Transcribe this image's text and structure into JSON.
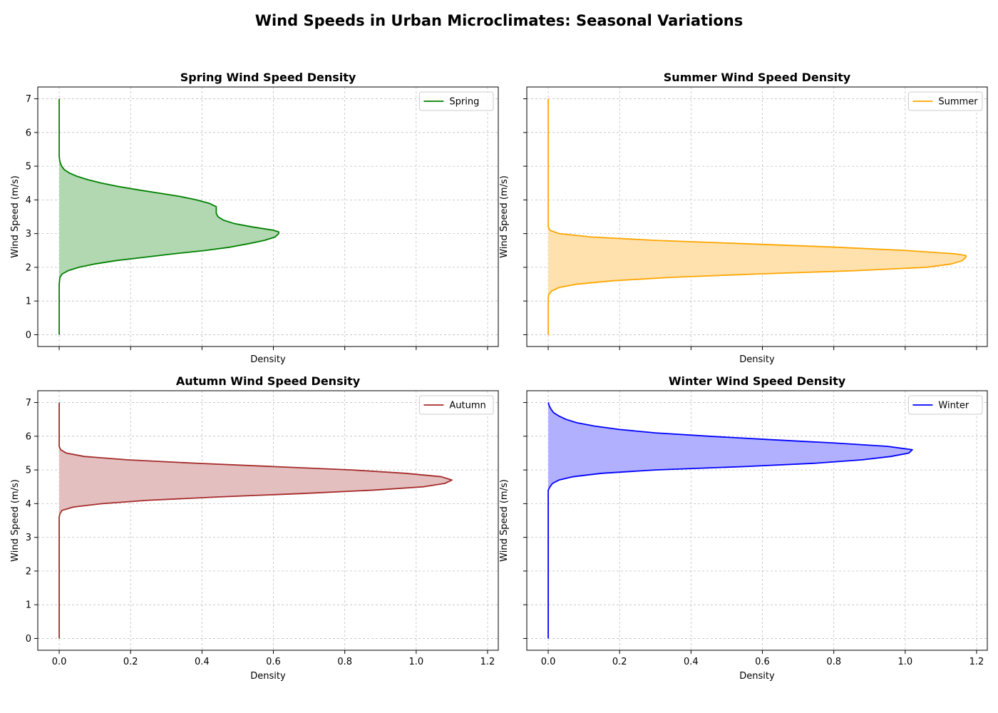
{
  "figure": {
    "suptitle": "Wind Speeds in Urban Microclimates: Seasonal Variations"
  },
  "chart_data": [
    {
      "type": "area",
      "title": "Spring Wind Speed Density",
      "xlabel": "Density",
      "ylabel": "Wind Speed (m/s)",
      "xlim": [
        -0.06,
        1.23
      ],
      "ylim": [
        -0.35,
        7.35
      ],
      "xticks": [
        "0.0",
        "0.2",
        "0.4",
        "0.6",
        "0.8",
        "1.0",
        "1.2"
      ],
      "yticks": [
        "0",
        "1",
        "2",
        "3",
        "4",
        "5",
        "6",
        "7"
      ],
      "show_xticklabels": false,
      "show_yticklabels": true,
      "grid": true,
      "legend": "upper-right",
      "series": [
        {
          "name": "Spring",
          "color": "#008000",
          "fill": "#b1d8b1",
          "y": [
            0,
            1.5,
            1.7,
            1.8,
            1.9,
            2.0,
            2.1,
            2.2,
            2.3,
            2.4,
            2.5,
            2.6,
            2.7,
            2.8,
            2.9,
            3.0,
            3.05,
            3.1,
            3.2,
            3.3,
            3.4,
            3.5,
            3.6,
            3.7,
            3.8,
            3.9,
            4.0,
            4.1,
            4.2,
            4.3,
            4.4,
            4.5,
            4.6,
            4.7,
            4.8,
            4.9,
            5.0,
            5.1,
            5.2,
            5.3,
            5.5,
            7.0
          ],
          "density": [
            0,
            0,
            0.002,
            0.008,
            0.025,
            0.055,
            0.1,
            0.16,
            0.24,
            0.32,
            0.41,
            0.48,
            0.53,
            0.575,
            0.605,
            0.615,
            0.615,
            0.6,
            0.54,
            0.49,
            0.46,
            0.445,
            0.44,
            0.44,
            0.44,
            0.42,
            0.385,
            0.34,
            0.28,
            0.22,
            0.165,
            0.118,
            0.08,
            0.05,
            0.028,
            0.014,
            0.007,
            0.003,
            0.001,
            0,
            0,
            0
          ]
        }
      ]
    },
    {
      "type": "area",
      "title": "Summer Wind Speed Density",
      "xlabel": "Density",
      "ylabel": "Wind Speed (m/s)",
      "xlim": [
        -0.06,
        1.23
      ],
      "ylim": [
        -0.35,
        7.35
      ],
      "xticks": [
        "0.0",
        "0.2",
        "0.4",
        "0.6",
        "0.8",
        "1.0",
        "1.2"
      ],
      "yticks": [
        "0",
        "1",
        "2",
        "3",
        "4",
        "5",
        "6",
        "7"
      ],
      "show_xticklabels": false,
      "show_yticklabels": false,
      "grid": true,
      "legend": "upper-right",
      "series": [
        {
          "name": "Summer",
          "color": "#ffa500",
          "fill": "#ffe1ad",
          "y": [
            0,
            1.1,
            1.2,
            1.3,
            1.4,
            1.5,
            1.6,
            1.7,
            1.8,
            1.9,
            2.0,
            2.1,
            2.2,
            2.3,
            2.35,
            2.4,
            2.5,
            2.6,
            2.7,
            2.8,
            2.9,
            3.0,
            3.1,
            3.2,
            7.0
          ],
          "density": [
            0,
            0,
            0.002,
            0.01,
            0.03,
            0.08,
            0.18,
            0.34,
            0.58,
            0.86,
            1.06,
            1.13,
            1.16,
            1.17,
            1.17,
            1.14,
            1.0,
            0.8,
            0.55,
            0.3,
            0.12,
            0.03,
            0.005,
            0,
            0
          ]
        }
      ]
    },
    {
      "type": "area",
      "title": "Autumn Wind Speed Density",
      "xlabel": "Density",
      "ylabel": "Wind Speed (m/s)",
      "xlim": [
        -0.06,
        1.23
      ],
      "ylim": [
        -0.35,
        7.35
      ],
      "xticks": [
        "0.0",
        "0.2",
        "0.4",
        "0.6",
        "0.8",
        "1.0",
        "1.2"
      ],
      "yticks": [
        "0",
        "1",
        "2",
        "3",
        "4",
        "5",
        "6",
        "7"
      ],
      "show_xticklabels": true,
      "show_yticklabels": true,
      "grid": true,
      "legend": "upper-right",
      "series": [
        {
          "name": "Autumn",
          "color": "#a52a2a",
          "fill": "#e4bfbf",
          "y": [
            0,
            3.6,
            3.7,
            3.8,
            3.9,
            4.0,
            4.1,
            4.2,
            4.3,
            4.4,
            4.5,
            4.6,
            4.7,
            4.8,
            4.9,
            5.0,
            5.1,
            5.2,
            5.3,
            5.4,
            5.5,
            5.6,
            5.7,
            7.0
          ],
          "density": [
            0,
            0,
            0.002,
            0.008,
            0.04,
            0.12,
            0.25,
            0.45,
            0.68,
            0.88,
            1.02,
            1.08,
            1.1,
            1.07,
            0.97,
            0.82,
            0.6,
            0.38,
            0.19,
            0.07,
            0.02,
            0.004,
            0,
            0
          ]
        }
      ]
    },
    {
      "type": "area",
      "title": "Winter Wind Speed Density",
      "xlabel": "Density",
      "ylabel": "Wind Speed (m/s)",
      "xlim": [
        -0.06,
        1.23
      ],
      "ylim": [
        -0.35,
        7.35
      ],
      "xticks": [
        "0.0",
        "0.2",
        "0.4",
        "0.6",
        "0.8",
        "1.0",
        "1.2"
      ],
      "yticks": [
        "0",
        "1",
        "2",
        "3",
        "4",
        "5",
        "6",
        "7"
      ],
      "show_xticklabels": true,
      "show_yticklabels": false,
      "grid": true,
      "legend": "upper-right",
      "series": [
        {
          "name": "Winter",
          "color": "#0000ff",
          "fill": "#b0b0ff",
          "y": [
            0,
            4.4,
            4.5,
            4.6,
            4.7,
            4.8,
            4.9,
            5.0,
            5.1,
            5.2,
            5.3,
            5.4,
            5.5,
            5.6,
            5.7,
            5.8,
            5.9,
            6.0,
            6.1,
            6.2,
            6.3,
            6.4,
            6.5,
            6.6,
            6.7,
            6.8,
            6.9,
            7.0
          ],
          "density": [
            0,
            0,
            0.005,
            0.012,
            0.03,
            0.07,
            0.15,
            0.3,
            0.55,
            0.75,
            0.88,
            0.96,
            1.01,
            1.02,
            0.95,
            0.8,
            0.62,
            0.45,
            0.3,
            0.2,
            0.13,
            0.08,
            0.05,
            0.03,
            0.015,
            0.008,
            0.003,
            0
          ]
        }
      ]
    }
  ]
}
